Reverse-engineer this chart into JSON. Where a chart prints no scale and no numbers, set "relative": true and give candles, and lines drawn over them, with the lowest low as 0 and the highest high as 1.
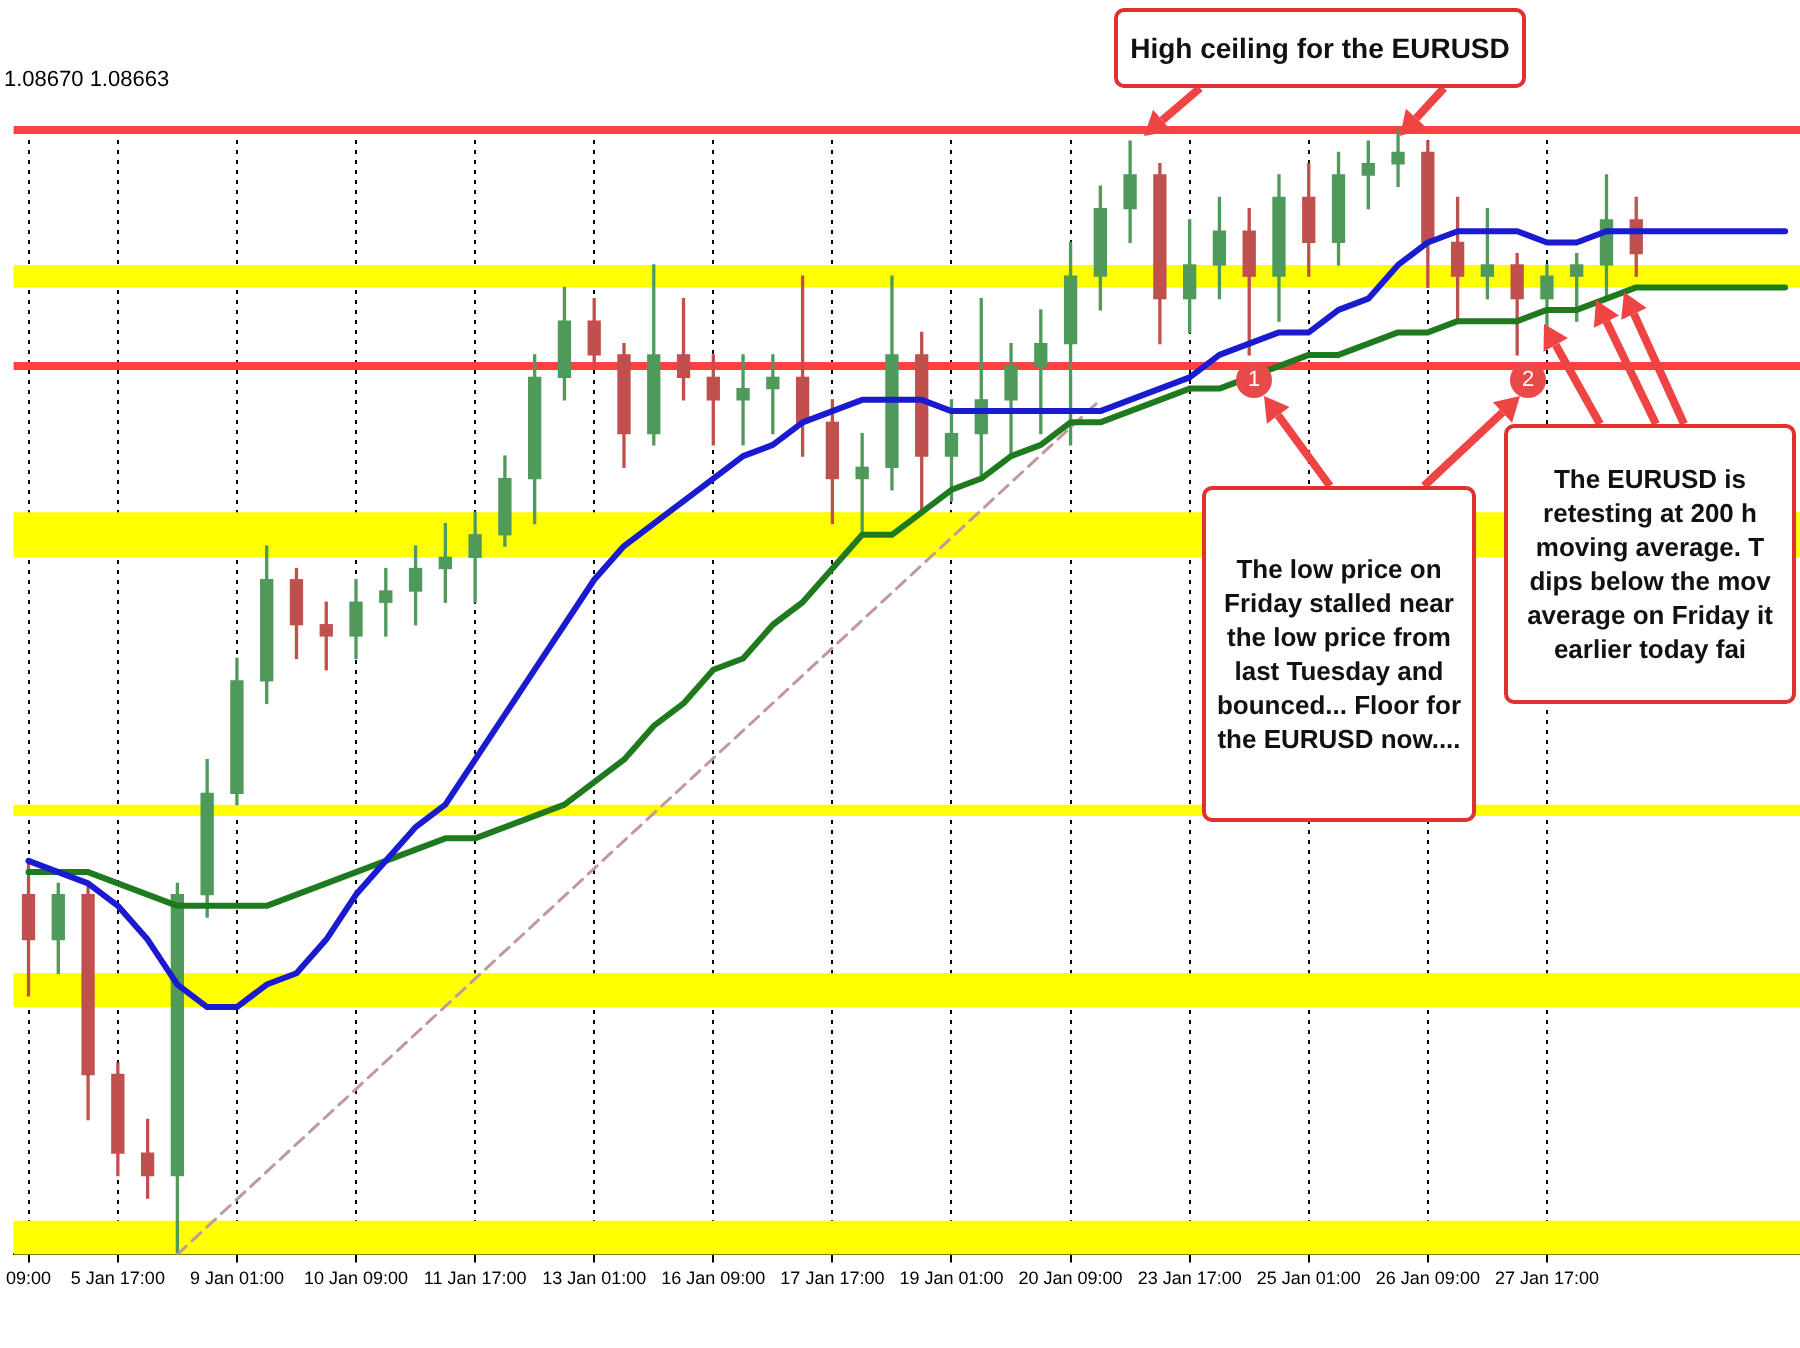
{
  "chart_data": {
    "type": "candlestick",
    "categories": [
      "09:00",
      null,
      null,
      "5 Jan 17:00",
      null,
      null,
      null,
      "9 Jan 01:00",
      null,
      null,
      null,
      "10 Jan 09:00",
      null,
      null,
      null,
      "11 Jan 17:00",
      null,
      null,
      null,
      "13 Jan 01:00",
      null,
      null,
      null,
      "16 Jan 09:00",
      null,
      null,
      null,
      "17 Jan 17:00",
      null,
      null,
      null,
      "19 Jan 01:00",
      null,
      null,
      null,
      "20 Jan 09:00",
      null,
      null,
      null,
      "23 Jan 17:00",
      null,
      null,
      null,
      "25 Jan 01:00",
      null,
      null,
      null,
      "26 Jan 09:00",
      null,
      null,
      null,
      "27 Jan 17:00",
      null,
      null,
      null,
      null,
      null,
      null,
      null,
      null
    ],
    "relative": true,
    "ohlc": [
      [
        0.32,
        0.35,
        0.23,
        0.28
      ],
      [
        0.28,
        0.33,
        0.25,
        0.32
      ],
      [
        0.32,
        0.33,
        0.12,
        0.16
      ],
      [
        0.16,
        0.17,
        0.07,
        0.09
      ],
      [
        0.09,
        0.12,
        0.05,
        0.07
      ],
      [
        0.07,
        0.33,
        0,
        0.32
      ],
      [
        0.32,
        0.44,
        0.3,
        0.41
      ],
      [
        0.41,
        0.53,
        0.4,
        0.51
      ],
      [
        0.51,
        0.63,
        0.49,
        0.6
      ],
      [
        0.6,
        0.61,
        0.53,
        0.56
      ],
      [
        0.56,
        0.58,
        0.52,
        0.55
      ],
      [
        0.55,
        0.6,
        0.53,
        0.58
      ],
      [
        0.58,
        0.61,
        0.55,
        0.59
      ],
      [
        0.59,
        0.63,
        0.56,
        0.61
      ],
      [
        0.61,
        0.65,
        0.58,
        0.62
      ],
      [
        0.62,
        0.66,
        0.58,
        0.64
      ],
      [
        0.64,
        0.71,
        0.63,
        0.69
      ],
      [
        0.69,
        0.8,
        0.65,
        0.78
      ],
      [
        0.78,
        0.86,
        0.76,
        0.83
      ],
      [
        0.83,
        0.85,
        0.79,
        0.8
      ],
      [
        0.8,
        0.81,
        0.7,
        0.73
      ],
      [
        0.73,
        0.88,
        0.72,
        0.8
      ],
      [
        0.8,
        0.85,
        0.76,
        0.78
      ],
      [
        0.78,
        0.8,
        0.72,
        0.76
      ],
      [
        0.76,
        0.8,
        0.72,
        0.77
      ],
      [
        0.77,
        0.8,
        0.73,
        0.78
      ],
      [
        0.78,
        0.87,
        0.71,
        0.74
      ],
      [
        0.74,
        0.76,
        0.65,
        0.69
      ],
      [
        0.69,
        0.73,
        0.64,
        0.7
      ],
      [
        0.7,
        0.87,
        0.68,
        0.8
      ],
      [
        0.8,
        0.82,
        0.66,
        0.71
      ],
      [
        0.71,
        0.76,
        0.67,
        0.73
      ],
      [
        0.73,
        0.85,
        0.69,
        0.76
      ],
      [
        0.76,
        0.81,
        0.71,
        0.79
      ],
      [
        0.79,
        0.84,
        0.73,
        0.81
      ],
      [
        0.81,
        0.9,
        0.72,
        0.87
      ],
      [
        0.87,
        0.95,
        0.84,
        0.93
      ],
      [
        0.93,
        0.99,
        0.9,
        0.96
      ],
      [
        0.96,
        0.97,
        0.81,
        0.85
      ],
      [
        0.85,
        0.92,
        0.82,
        0.88
      ],
      [
        0.88,
        0.94,
        0.85,
        0.91
      ],
      [
        0.91,
        0.93,
        0.8,
        0.87
      ],
      [
        0.87,
        0.96,
        0.83,
        0.94
      ],
      [
        0.94,
        0.97,
        0.87,
        0.9
      ],
      [
        0.9,
        0.98,
        0.88,
        0.96
      ],
      [
        0.96,
        0.99,
        0.93,
        0.97
      ],
      [
        0.97,
        1,
        0.95,
        0.98
      ],
      [
        0.98,
        0.99,
        0.86,
        0.9
      ],
      [
        0.9,
        0.94,
        0.83,
        0.87
      ],
      [
        0.87,
        0.93,
        0.85,
        0.88
      ],
      [
        0.88,
        0.89,
        0.8,
        0.85
      ],
      [
        0.85,
        0.88,
        0.82,
        0.87
      ],
      [
        0.87,
        0.89,
        0.83,
        0.88
      ],
      [
        0.88,
        0.96,
        0.85,
        0.92
      ],
      [
        0.92,
        0.94,
        0.87,
        0.89
      ],
      null,
      null,
      null,
      null,
      null
    ],
    "colors": [
      "#c0504d",
      "#4f9a5a",
      "#c0504d",
      "#c0504d",
      "#c0504d",
      "#4f9a5a",
      "#4f9a5a",
      "#4f9a5a",
      "#4f9a5a",
      "#c0504d",
      "#c0504d",
      "#4f9a5a",
      "#4f9a5a",
      "#4f9a5a",
      "#4f9a5a",
      "#4f9a5a",
      "#4f9a5a",
      "#4f9a5a",
      "#4f9a5a",
      "#c0504d",
      "#c0504d",
      "#4f9a5a",
      "#c0504d",
      "#c0504d",
      "#4f9a5a",
      "#4f9a5a",
      "#c0504d",
      "#c0504d",
      "#4f9a5a",
      "#4f9a5a",
      "#c0504d",
      "#4f9a5a",
      "#4f9a5a",
      "#4f9a5a",
      "#4f9a5a",
      "#4f9a5a",
      "#4f9a5a",
      "#4f9a5a",
      "#c0504d",
      "#4f9a5a",
      "#4f9a5a",
      "#c0504d",
      "#4f9a5a",
      "#c0504d",
      "#4f9a5a",
      "#4f9a5a",
      "#4f9a5a",
      "#c0504d",
      "#c0504d",
      "#4f9a5a",
      "#c0504d",
      "#4f9a5a",
      "#4f9a5a",
      "#4f9a5a",
      "#c0504d",
      null,
      null,
      null,
      null,
      null
    ],
    "series": [
      {
        "type": "line",
        "color": "#1a1ad0",
        "values": [
          0.35,
          0.34,
          0.33,
          0.31,
          0.28,
          0.24,
          0.22,
          0.22,
          0.24,
          0.25,
          0.28,
          0.32,
          0.35,
          0.38,
          0.4,
          0.44,
          0.48,
          0.52,
          0.56,
          0.6,
          0.63,
          0.65,
          0.67,
          0.69,
          0.71,
          0.72,
          0.74,
          0.75,
          0.76,
          0.76,
          0.76,
          0.75,
          0.75,
          0.75,
          0.75,
          0.75,
          0.75,
          0.76,
          0.77,
          0.78,
          0.8,
          0.81,
          0.82,
          0.82,
          0.84,
          0.85,
          0.88,
          0.9,
          0.91,
          0.91,
          0.91,
          0.9,
          0.9,
          0.91,
          0.91,
          0.91,
          0.91,
          0.91,
          0.91,
          0.91
        ]
      },
      {
        "type": "line",
        "color": "#1f7a1f",
        "values": [
          0.34,
          0.34,
          0.34,
          0.33,
          0.32,
          0.31,
          0.31,
          0.31,
          0.31,
          0.32,
          0.33,
          0.34,
          0.35,
          0.36,
          0.37,
          0.37,
          0.38,
          0.39,
          0.4,
          0.42,
          0.44,
          0.47,
          0.49,
          0.52,
          0.53,
          0.56,
          0.58,
          0.61,
          0.64,
          0.64,
          0.66,
          0.68,
          0.69,
          0.71,
          0.72,
          0.74,
          0.74,
          0.75,
          0.76,
          0.77,
          0.77,
          0.78,
          0.79,
          0.8,
          0.8,
          0.81,
          0.82,
          0.82,
          0.83,
          0.83,
          0.83,
          0.84,
          0.84,
          0.85,
          0.86,
          0.86,
          0.86,
          0.86,
          0.86,
          0.86
        ]
      },
      {
        "type": "line",
        "color": "#c09a9a",
        "line_style": "dashed",
        "values": [
          null,
          null,
          null,
          null,
          null,
          0,
          null,
          null,
          null,
          null,
          null,
          null,
          null,
          null,
          null,
          null,
          null,
          null,
          null,
          null,
          null,
          null,
          null,
          null,
          null,
          null,
          null,
          null,
          null,
          null,
          null,
          null,
          null,
          null,
          null,
          null,
          0.76,
          null,
          null,
          null,
          null,
          null,
          null,
          null,
          null,
          null,
          null,
          null,
          null,
          null,
          null,
          null,
          null,
          null,
          null,
          null,
          null,
          null,
          null,
          null
        ]
      }
    ],
    "marker": "none",
    "bands": [
      {
        "axis": "y",
        "from": 0.86,
        "to": 0.88,
        "color": "#ffff00"
      },
      {
        "axis": "y",
        "from": 0.62,
        "to": 0.66,
        "color": "#ffff00"
      },
      {
        "axis": "y",
        "from": 0.39,
        "to": 0.4,
        "color": "#ffff00"
      },
      {
        "axis": "y",
        "from": 0.22,
        "to": 0.25,
        "color": "#ffff00"
      },
      {
        "axis": "y",
        "from": 0,
        "to": 0.03,
        "color": "#ffff00"
      }
    ],
    "ref_lines": [
      {
        "axis": "y",
        "value": 1,
        "color": "#ff4040"
      },
      {
        "axis": "y",
        "value": 0.79,
        "color": "#ff4040"
      }
    ],
    "grid": "x",
    "legend": false,
    "annotations": [
      "1.08670 1.08663",
      "High ceiling for the EURUSD",
      "The low price on Friday stalled near the low price from last Tuesday and bounced... Floor for the EURUSD now....",
      "The EURUSD is retesting at 200 h moving average. T dips below the mov average on Friday it earlier today fai",
      "1",
      "2"
    ]
  }
}
